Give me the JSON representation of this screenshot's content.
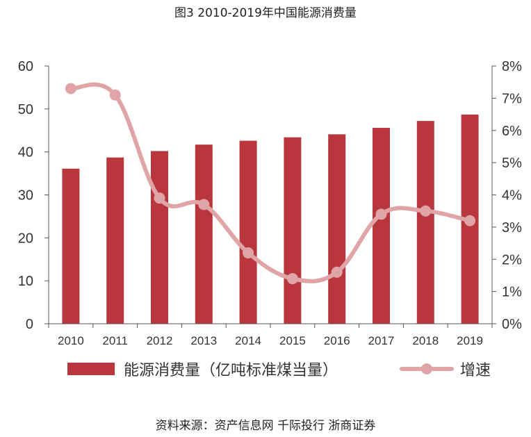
{
  "title": "图3 2010-2019年中国能源消费量",
  "source": "资料来源：资产信息网 千际投行 浙商证券",
  "colors": {
    "bar": "#b9373c",
    "line": "#e0a4a7",
    "axis": "#555555"
  },
  "chart_data": {
    "type": "bar",
    "categories": [
      "2010",
      "2011",
      "2012",
      "2013",
      "2014",
      "2015",
      "2016",
      "2017",
      "2018",
      "2019"
    ],
    "series": [
      {
        "name": "能源消费量（亿吨标准煤当量）",
        "type": "bar",
        "axis": "left",
        "values": [
          36.1,
          38.7,
          40.2,
          41.7,
          42.6,
          43.4,
          44.1,
          45.6,
          47.2,
          48.7
        ]
      },
      {
        "name": "增速",
        "type": "line",
        "axis": "right",
        "values": [
          7.3,
          7.1,
          3.9,
          3.7,
          2.2,
          1.4,
          1.6,
          3.4,
          3.5,
          3.2
        ]
      }
    ],
    "ylim_left": [
      0,
      60
    ],
    "yticks_left": [
      "0",
      "10",
      "20",
      "30",
      "40",
      "50",
      "60"
    ],
    "ylim_right": [
      0,
      8
    ],
    "yticks_right": [
      "0%",
      "1%",
      "2%",
      "3%",
      "4%",
      "5%",
      "6%",
      "7%",
      "8%"
    ],
    "legend_position": "bottom",
    "grid": false
  }
}
